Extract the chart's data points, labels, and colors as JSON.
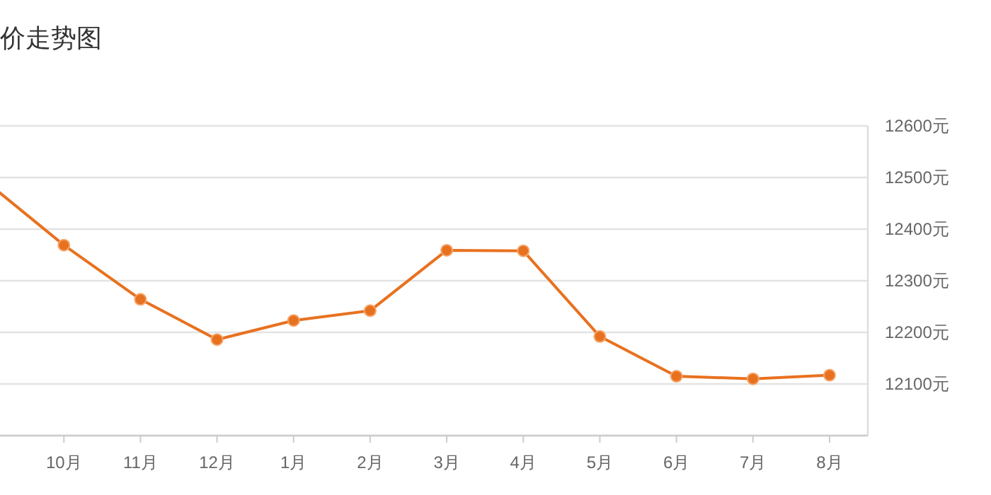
{
  "chart_data": {
    "type": "line",
    "title": "价走势图",
    "categories": [
      null,
      "10月",
      "11月",
      "12月",
      "1月",
      "2月",
      "3月",
      "4月",
      "5月",
      "6月",
      "7月",
      "8月"
    ],
    "series": [
      {
        "color": "#e8711f",
        "values": [
          12490,
          12369,
          12264,
          12186,
          12223,
          12242,
          12359,
          12358,
          12192,
          12115,
          12110,
          12117
        ]
      }
    ],
    "ylim": [
      12000,
      12600
    ],
    "yticks": [
      {
        "value": 12000,
        "label": null
      },
      {
        "value": 12100,
        "label": "12100元"
      },
      {
        "value": 12200,
        "label": "12200元"
      },
      {
        "value": 12300,
        "label": "12300元"
      },
      {
        "value": 12400,
        "label": "12400元"
      },
      {
        "value": 12500,
        "label": "12500元"
      },
      {
        "value": 12600,
        "label": "12600元"
      }
    ],
    "grid": "y",
    "marker": "circle",
    "line_style": "solid"
  }
}
